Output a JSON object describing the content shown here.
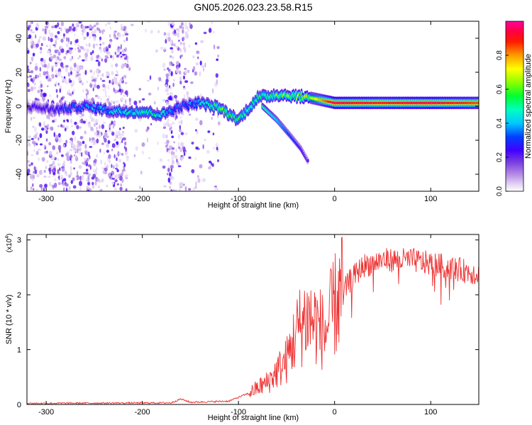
{
  "title": "GN05.2026.023.23.58.R15",
  "chart_data": [
    {
      "type": "heatmap",
      "xlabel": "Height of straight line (km)",
      "ylabel": "Frequency (Hz)",
      "xlim": [
        -320,
        150
      ],
      "ylim": [
        -50,
        50
      ],
      "xticks": [
        -300,
        -200,
        -100,
        0,
        100
      ],
      "yticks": [
        -40,
        -20,
        0,
        20,
        40
      ],
      "grid": false,
      "colorbar": {
        "label": "Normalized spectral amplitude",
        "ticks": [
          0.0,
          0.2,
          0.4,
          0.6,
          0.8
        ],
        "ticklabels": [
          "0.0",
          "0.2",
          "0.4",
          "0.6",
          "0.8"
        ],
        "range": [
          0,
          1
        ]
      },
      "ridge": [
        {
          "x": -320,
          "freq": 0,
          "amp": 0.2
        },
        {
          "x": -290,
          "freq": -2,
          "amp": 0.25
        },
        {
          "x": -260,
          "freq": 0,
          "amp": 0.35
        },
        {
          "x": -230,
          "freq": -3,
          "amp": 0.4
        },
        {
          "x": -200,
          "freq": -3,
          "amp": 0.5
        },
        {
          "x": -180,
          "freq": -5,
          "amp": 0.45
        },
        {
          "x": -160,
          "freq": 0,
          "amp": 0.3
        },
        {
          "x": -140,
          "freq": 2,
          "amp": 0.4
        },
        {
          "x": -120,
          "freq": -1,
          "amp": 0.55
        },
        {
          "x": -100,
          "freq": -8,
          "amp": 0.5
        },
        {
          "x": -80,
          "freq": 5,
          "amp": 0.5
        },
        {
          "x": -60,
          "freq": 7,
          "amp": 0.55
        },
        {
          "x": -40,
          "freq": 6,
          "amp": 0.6
        },
        {
          "x": -25,
          "freq": 5,
          "amp": 0.65
        },
        {
          "x": 0,
          "freq": 2,
          "amp": 0.95
        },
        {
          "x": 50,
          "freq": 2,
          "amp": 0.9
        },
        {
          "x": 100,
          "freq": 2,
          "amp": 0.95
        },
        {
          "x": 150,
          "freq": 2,
          "amp": 0.85
        }
      ],
      "branch": [
        {
          "x": -75,
          "freq": 0,
          "amp": 0.5
        },
        {
          "x": -60,
          "freq": -8,
          "amp": 0.4
        },
        {
          "x": -45,
          "freq": -18,
          "amp": 0.3
        },
        {
          "x": -35,
          "freq": -25,
          "amp": 0.25
        },
        {
          "x": -28,
          "freq": -32,
          "amp": 0.2
        }
      ],
      "noise_bands": [
        {
          "from": -320,
          "to": -215,
          "density": 1.0
        },
        {
          "from": -215,
          "to": -175,
          "density": 0.15
        },
        {
          "from": -175,
          "to": -155,
          "density": 1.0
        },
        {
          "from": -155,
          "to": -120,
          "density": 0.3
        }
      ]
    },
    {
      "type": "line",
      "xlabel": "Height of straight line (km)",
      "ylabel": "SNR (10 * v/v)",
      "scale_label": "(x10",
      "scale_exponent": "4",
      "xlim": [
        -320,
        150
      ],
      "ylim": [
        0,
        3.1
      ],
      "xticks": [
        -300,
        -200,
        -100,
        0,
        100
      ],
      "yticks": [
        0,
        1,
        2,
        3
      ],
      "grid": false,
      "color": "#ee3333",
      "envelope": [
        {
          "x": -320,
          "y": 0.02
        },
        {
          "x": -170,
          "y": 0.03
        },
        {
          "x": -160,
          "y": 0.1
        },
        {
          "x": -150,
          "y": 0.04
        },
        {
          "x": -110,
          "y": 0.06
        },
        {
          "x": -90,
          "y": 0.2
        },
        {
          "x": -70,
          "y": 0.4
        },
        {
          "x": -50,
          "y": 0.8
        },
        {
          "x": -40,
          "y": 1.3
        },
        {
          "x": -30,
          "y": 1.6
        },
        {
          "x": -20,
          "y": 1.5
        },
        {
          "x": -10,
          "y": 1.3
        },
        {
          "x": 0,
          "y": 1.8
        },
        {
          "x": 15,
          "y": 2.3
        },
        {
          "x": 30,
          "y": 2.6
        },
        {
          "x": 50,
          "y": 2.7
        },
        {
          "x": 80,
          "y": 2.7
        },
        {
          "x": 110,
          "y": 2.6
        },
        {
          "x": 150,
          "y": 2.45
        }
      ]
    }
  ]
}
